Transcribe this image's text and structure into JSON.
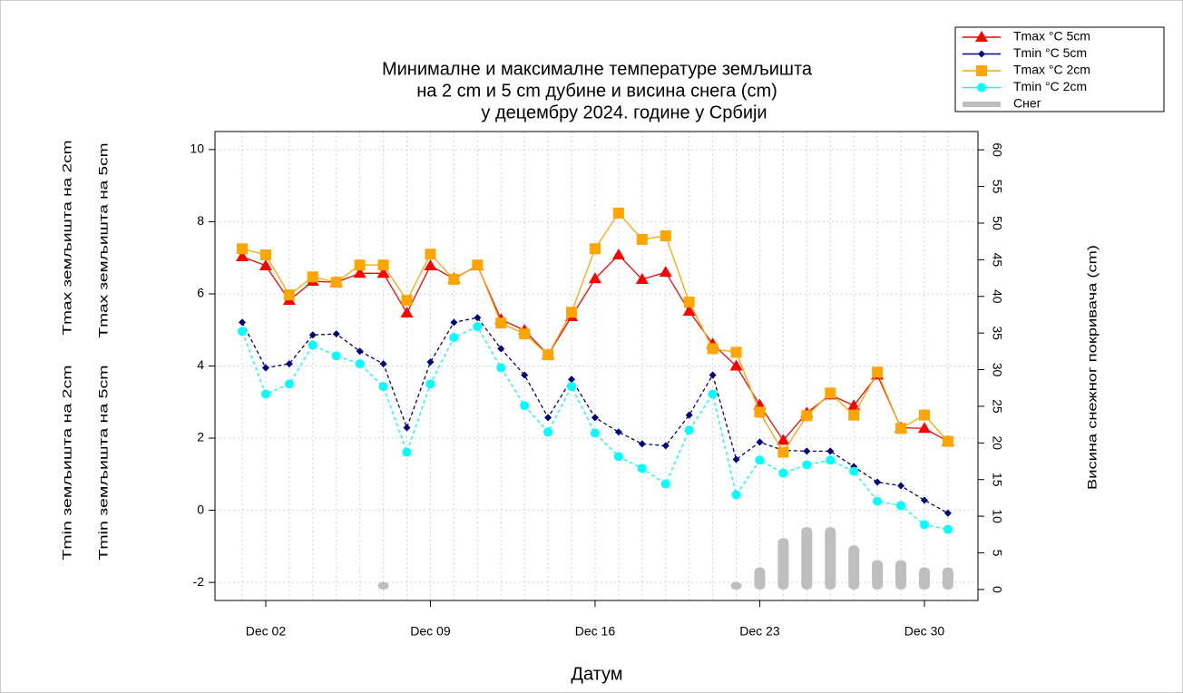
{
  "chart_data": {
    "type": "line",
    "title": [
      "Минималне и максималне температуре земљишта",
      "на 2 cm и 5 cm дубине и висина снега (cm)",
      "у децембру 2024. године у Србији"
    ],
    "xlabel": "Датум",
    "ylabels": [
      {
        "text": "Tmax земљишта на 2cm",
        "color": "#ffa500"
      },
      {
        "text": "Tmax земљишта на 5cm",
        "color": "#ff0000"
      },
      {
        "text": "Tmin земљишта на 2cm",
        "color": "#00e5ee"
      },
      {
        "text": "Tmin земљишта на 5cm",
        "color": "#000080"
      }
    ],
    "y2label": "Висина снежног покривача (cm)",
    "categories": [
      null,
      "Dec 02",
      null,
      null,
      null,
      null,
      null,
      null,
      "Dec 09",
      null,
      null,
      null,
      null,
      null,
      null,
      "Dec 16",
      null,
      null,
      null,
      null,
      null,
      null,
      "Dec 23",
      null,
      null,
      null,
      null,
      null,
      null,
      "Dec 30",
      null
    ],
    "series": [
      {
        "name": "Tmax °C 5cm",
        "color": "#ff0000",
        "marker": "triangle",
        "values": [
          7.03,
          6.78,
          5.82,
          6.35,
          6.32,
          6.57,
          6.57,
          5.47,
          6.78,
          6.42,
          6.78,
          5.29,
          4.99,
          4.31,
          5.37,
          6.42,
          7.08,
          6.4,
          6.6,
          5.52,
          4.61,
          4.0,
          2.92,
          1.94,
          2.7,
          3.2,
          2.9,
          3.75,
          2.29,
          2.27,
          1.91
        ]
      },
      {
        "name": "Tmin °C 5cm",
        "color": "#000080",
        "marker": "diamond",
        "values": [
          5.21,
          3.95,
          4.06,
          4.86,
          4.89,
          4.41,
          4.06,
          2.29,
          4.11,
          5.21,
          5.34,
          4.48,
          3.75,
          2.57,
          3.63,
          2.57,
          2.17,
          1.84,
          1.79,
          2.64,
          3.75,
          1.41,
          1.89,
          1.66,
          1.64,
          1.64,
          1.21,
          0.78,
          0.68,
          0.28,
          -0.08
        ]
      },
      {
        "name": "Tmax °C 2cm",
        "color": "#ffa500",
        "marker": "square",
        "values": [
          7.25,
          7.08,
          5.97,
          6.47,
          6.32,
          6.8,
          6.8,
          5.82,
          7.1,
          6.4,
          6.8,
          5.19,
          4.89,
          4.31,
          5.49,
          7.25,
          8.24,
          7.51,
          7.61,
          5.77,
          4.48,
          4.38,
          2.72,
          1.61,
          2.62,
          3.25,
          2.64,
          3.83,
          2.27,
          2.64,
          1.91
        ]
      },
      {
        "name": "Tmin °C 2cm",
        "color": "#00ffff",
        "marker": "circle",
        "values": [
          4.96,
          3.22,
          3.5,
          4.58,
          4.28,
          4.06,
          3.43,
          1.61,
          3.5,
          4.79,
          5.09,
          3.95,
          2.9,
          2.17,
          3.43,
          2.14,
          1.49,
          1.16,
          0.73,
          2.22,
          3.22,
          0.43,
          1.39,
          1.03,
          1.26,
          1.39,
          1.08,
          0.25,
          0.13,
          -0.4,
          -0.53
        ]
      },
      {
        "name": "Снег",
        "color": "#bebebe",
        "marker": "bar",
        "axis": "y2",
        "values": [
          0,
          0,
          0,
          0,
          0,
          0,
          1,
          0,
          0,
          0,
          0,
          0,
          0,
          0,
          0,
          0,
          0,
          0,
          0,
          0,
          0,
          1,
          3,
          7,
          8.5,
          8.5,
          6,
          4,
          4,
          3,
          3
        ]
      }
    ],
    "ylim": [
      -2.5,
      10.5
    ],
    "yticks": [
      -2,
      0,
      2,
      4,
      6,
      8,
      10
    ],
    "y2lim": [
      -1.5,
      62.5
    ],
    "y2ticks": [
      0,
      5,
      10,
      15,
      20,
      25,
      30,
      35,
      40,
      45,
      50,
      55,
      60
    ],
    "grid": true,
    "legend": "top-right"
  }
}
